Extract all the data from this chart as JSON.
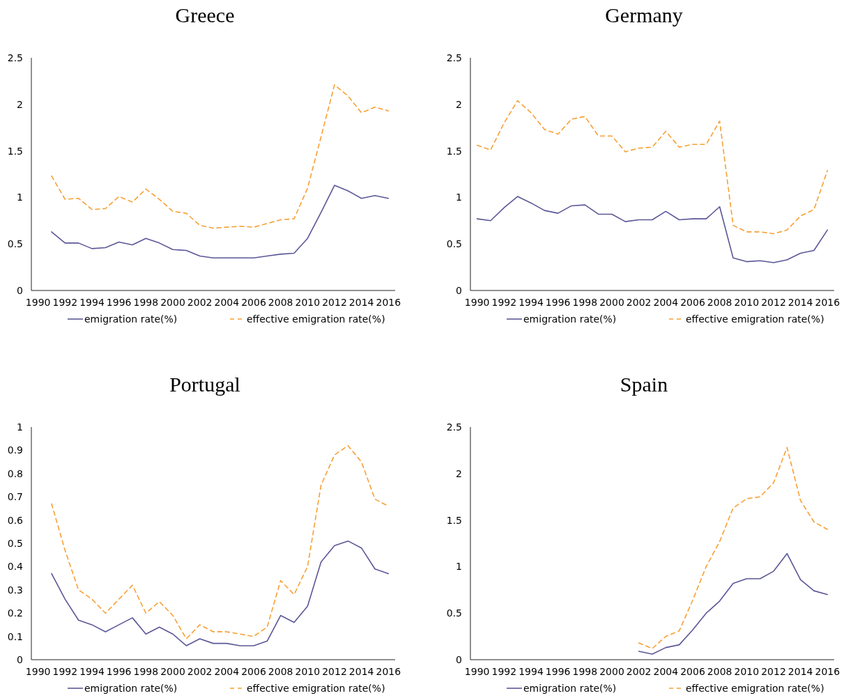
{
  "chart_data": [
    {
      "type": "line",
      "title": "Greece",
      "categories": [
        "1990",
        null,
        "1992",
        null,
        "1994",
        null,
        "1996",
        null,
        "1998",
        null,
        "2000",
        null,
        "2002",
        null,
        "2004",
        null,
        "2006",
        null,
        "2008",
        null,
        "2010",
        null,
        "2012",
        null,
        "2014",
        null,
        "2016"
      ],
      "ylim": [
        0,
        2.5
      ],
      "yticks": [
        0,
        0.5,
        1,
        1.5,
        2,
        2.5
      ],
      "grid": false,
      "legend": "bottom",
      "series": [
        {
          "name": "emigration rate(%)",
          "color": "#5b5797",
          "line_style": "solid",
          "values": [
            null,
            0.63,
            0.51,
            0.51,
            0.45,
            0.46,
            0.52,
            0.49,
            0.56,
            0.51,
            0.44,
            0.43,
            0.37,
            0.35,
            0.35,
            0.35,
            0.35,
            0.37,
            0.39,
            0.4,
            0.56,
            0.84,
            1.13,
            1.07,
            0.99,
            1.02,
            0.99
          ]
        },
        {
          "name": "effective emigration rate(%)",
          "color": "#f7a035",
          "line_style": "dashed",
          "values": [
            null,
            1.23,
            0.98,
            0.99,
            0.87,
            0.88,
            1.01,
            0.95,
            1.09,
            0.98,
            0.85,
            0.83,
            0.7,
            0.67,
            0.68,
            0.69,
            0.68,
            0.72,
            0.76,
            0.77,
            1.1,
            1.65,
            2.21,
            2.09,
            1.91,
            1.97,
            1.93
          ]
        }
      ]
    },
    {
      "type": "line",
      "title": "Germany",
      "categories": [
        "1990",
        null,
        "1992",
        null,
        "1994",
        null,
        "1996",
        null,
        "1998",
        null,
        "2000",
        null,
        "2002",
        null,
        "2004",
        null,
        "2006",
        null,
        "2008",
        null,
        "2010",
        null,
        "2012",
        null,
        "2014",
        null,
        "2016"
      ],
      "ylim": [
        0,
        2.5
      ],
      "yticks": [
        0,
        0.5,
        1,
        1.5,
        2,
        2.5
      ],
      "grid": false,
      "legend": "bottom",
      "series": [
        {
          "name": "emigration rate(%)",
          "color": "#5b5797",
          "line_style": "solid",
          "values": [
            0.77,
            0.75,
            0.89,
            1.01,
            0.94,
            0.86,
            0.83,
            0.91,
            0.92,
            0.82,
            0.82,
            0.74,
            0.76,
            0.76,
            0.85,
            0.76,
            0.77,
            0.77,
            0.9,
            0.35,
            0.31,
            0.32,
            0.3,
            0.33,
            0.4,
            0.43,
            0.65
          ]
        },
        {
          "name": "effective emigration rate(%)",
          "color": "#f7a035",
          "line_style": "dashed",
          "values": [
            1.56,
            1.51,
            1.8,
            2.04,
            1.91,
            1.73,
            1.68,
            1.84,
            1.87,
            1.66,
            1.66,
            1.49,
            1.53,
            1.54,
            1.71,
            1.54,
            1.57,
            1.57,
            1.82,
            0.7,
            0.63,
            0.63,
            0.61,
            0.65,
            0.8,
            0.87,
            1.29
          ]
        }
      ]
    },
    {
      "type": "line",
      "title": "Portugal",
      "categories": [
        "1990",
        null,
        "1992",
        null,
        "1994",
        null,
        "1996",
        null,
        "1998",
        null,
        "2000",
        null,
        "2002",
        null,
        "2004",
        null,
        "2006",
        null,
        "2008",
        null,
        "2010",
        null,
        "2012",
        null,
        "2014",
        null,
        "2016"
      ],
      "ylim": [
        0,
        1
      ],
      "yticks": [
        0,
        0.1,
        0.2,
        0.3,
        0.4,
        0.5,
        0.6,
        0.7,
        0.8,
        0.9,
        1
      ],
      "grid": false,
      "legend": "bottom",
      "series": [
        {
          "name": "emigration rate(%)",
          "color": "#5b5797",
          "line_style": "solid",
          "values": [
            null,
            0.37,
            0.26,
            0.17,
            0.15,
            0.12,
            0.15,
            0.18,
            0.11,
            0.14,
            0.11,
            0.06,
            0.09,
            0.07,
            0.07,
            0.06,
            0.06,
            0.08,
            0.19,
            0.16,
            0.23,
            0.42,
            0.49,
            0.51,
            0.48,
            0.39,
            0.37
          ]
        },
        {
          "name": "effective emigration rate(%)",
          "color": "#f7a035",
          "line_style": "dashed",
          "values": [
            null,
            0.67,
            0.47,
            0.3,
            0.26,
            0.2,
            0.26,
            0.32,
            0.2,
            0.25,
            0.19,
            0.09,
            0.15,
            0.12,
            0.12,
            0.11,
            0.1,
            0.14,
            0.34,
            0.28,
            0.4,
            0.75,
            0.88,
            0.92,
            0.85,
            0.69,
            0.66
          ]
        }
      ]
    },
    {
      "type": "line",
      "title": "Spain",
      "categories": [
        "1990",
        null,
        "1992",
        null,
        "1994",
        null,
        "1996",
        null,
        "1998",
        null,
        "2000",
        null,
        "2002",
        null,
        "2004",
        null,
        "2006",
        null,
        "2008",
        null,
        "2010",
        null,
        "2012",
        null,
        "2014",
        null,
        "2016"
      ],
      "ylim": [
        0,
        2.5
      ],
      "yticks": [
        0,
        0.5,
        1,
        1.5,
        2,
        2.5
      ],
      "grid": false,
      "legend": "bottom",
      "series": [
        {
          "name": "emigration rate(%)",
          "color": "#5b5797",
          "line_style": "solid",
          "values": [
            null,
            null,
            null,
            null,
            null,
            null,
            null,
            null,
            null,
            null,
            null,
            null,
            0.09,
            0.06,
            0.13,
            0.16,
            0.32,
            0.5,
            0.63,
            0.82,
            0.87,
            0.87,
            0.95,
            1.14,
            0.86,
            0.74,
            0.7
          ]
        },
        {
          "name": "effective emigration rate(%)",
          "color": "#f7a035",
          "line_style": "dashed",
          "values": [
            null,
            null,
            null,
            null,
            null,
            null,
            null,
            null,
            null,
            null,
            null,
            null,
            0.18,
            0.12,
            0.25,
            0.31,
            0.64,
            1.0,
            1.27,
            1.63,
            1.73,
            1.75,
            1.9,
            2.28,
            1.71,
            1.48,
            1.4
          ]
        }
      ]
    }
  ]
}
